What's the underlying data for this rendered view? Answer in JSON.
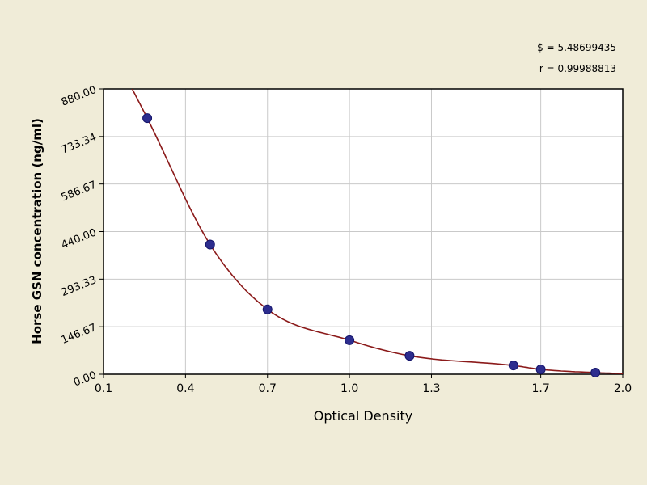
{
  "page": {
    "background": "#f0ecd8"
  },
  "stats": {
    "s_line": "$ = 5.48699435",
    "r_line": "r = 0.99988813"
  },
  "chart_data": {
    "type": "scatter",
    "title": "",
    "xlabel": "Optical Density",
    "ylabel": "Horse GSN concentration (ng/ml)",
    "xlim": [
      0.1,
      2.0
    ],
    "ylim": [
      0,
      880
    ],
    "grid": true,
    "legend": "none",
    "x_ticks": [
      0.1,
      0.4,
      0.7,
      1.0,
      1.3,
      1.7,
      2.0
    ],
    "x_tick_labels": [
      "0.1",
      "0.4",
      "0.7",
      "1.0",
      "1.3",
      "1.7",
      "2.0"
    ],
    "y_ticks": [
      0,
      146.67,
      293.33,
      440.0,
      586.67,
      733.34,
      880.0
    ],
    "y_tick_labels": [
      "0.00",
      "146.67",
      "293.33",
      "440.00",
      "586.67",
      "733.34",
      "880.00"
    ],
    "points": [
      [
        0.26,
        790
      ],
      [
        0.49,
        400
      ],
      [
        0.7,
        200
      ],
      [
        1.0,
        105
      ],
      [
        1.22,
        57
      ],
      [
        1.6,
        27
      ],
      [
        1.7,
        15
      ],
      [
        1.9,
        5
      ]
    ],
    "curve": [
      [
        0.205,
        880
      ],
      [
        0.26,
        790
      ],
      [
        0.49,
        400
      ],
      [
        0.7,
        200
      ],
      [
        1.0,
        105
      ],
      [
        1.22,
        57
      ],
      [
        1.6,
        27
      ],
      [
        1.7,
        15
      ],
      [
        1.9,
        5
      ],
      [
        2.0,
        2
      ]
    ],
    "colors": {
      "curve": "#8b1a1a",
      "point_fill": "#2d2d8e",
      "point_stroke": "#15156b",
      "grid": "#c9c9c9",
      "plot_bg": "#ffffff",
      "axis": "#000000",
      "page_bg": "#f0ecd8"
    }
  }
}
